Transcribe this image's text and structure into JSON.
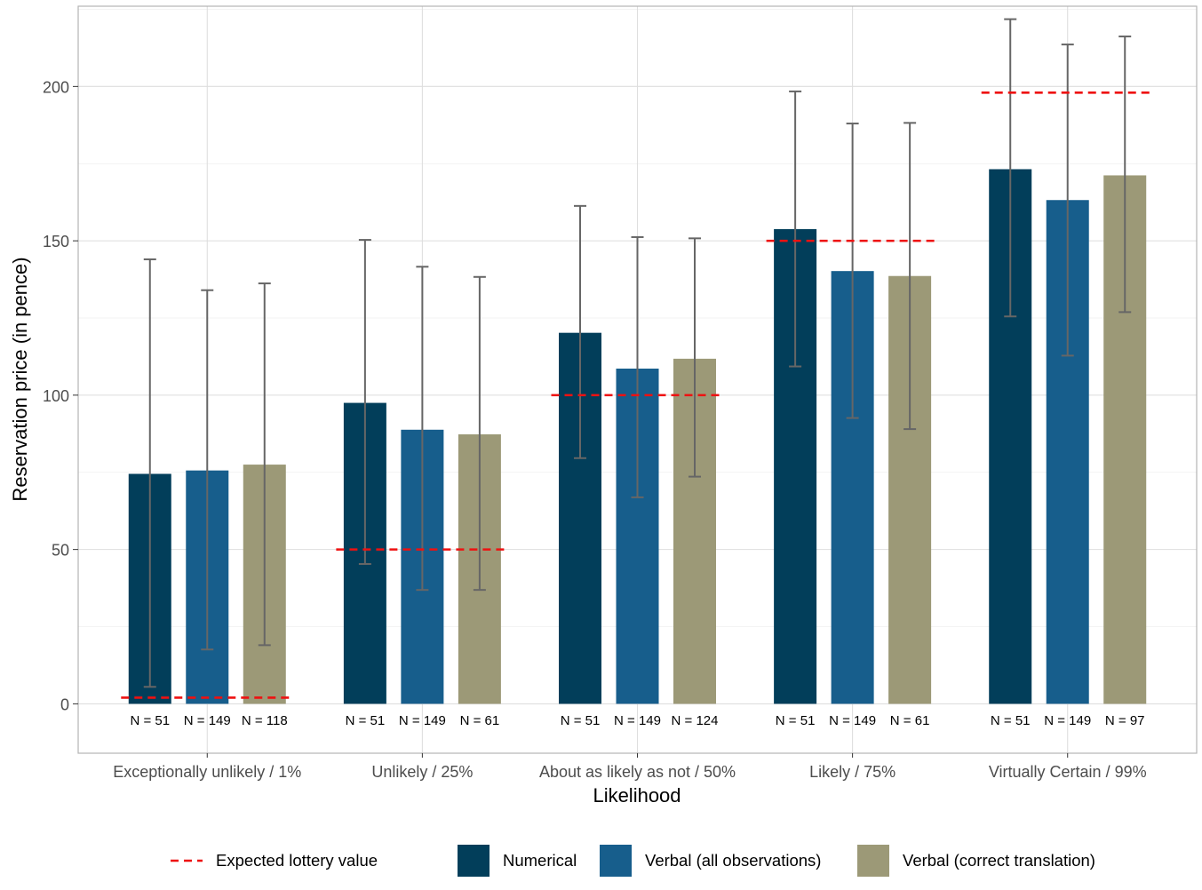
{
  "chart_data": {
    "type": "bar",
    "xlabel": "Likelihood",
    "ylabel": "Reservation price (in pence)",
    "ylim": [
      -16,
      226
    ],
    "yticks": [
      0,
      50,
      100,
      150,
      200
    ],
    "grid": true,
    "legend_position": "bottom",
    "categories": [
      "Exceptionally unlikely / 1%",
      "Unlikely / 25%",
      "About as likely as not / 50%",
      "Likely / 75%",
      "Virtually Certain / 99%"
    ],
    "series": [
      {
        "name": "Numerical",
        "color": "#023e5a",
        "values": [
          74.5,
          97.5,
          120.2,
          153.8,
          173.2
        ],
        "error_low": [
          5.5,
          45.3,
          79.6,
          109.3,
          125.5
        ],
        "error_high": [
          144.0,
          150.3,
          161.3,
          198.4,
          221.8
        ],
        "n_labels": [
          "N = 51",
          "N = 51",
          "N = 51",
          "N = 51",
          "N = 51"
        ]
      },
      {
        "name": "Verbal (all observations)",
        "color": "#175e8c",
        "values": [
          75.6,
          88.8,
          108.6,
          140.2,
          163.2
        ],
        "error_low": [
          17.6,
          36.9,
          66.9,
          92.6,
          112.8
        ],
        "error_high": [
          134.0,
          141.6,
          151.2,
          188.0,
          213.6
        ],
        "n_labels": [
          "N = 149",
          "N = 149",
          "N = 149",
          "N = 149",
          "N = 149"
        ]
      },
      {
        "name": "Verbal (correct translation)",
        "color": "#9c9977",
        "values": [
          77.5,
          87.3,
          111.8,
          138.6,
          171.2
        ],
        "error_low": [
          19.0,
          36.9,
          73.6,
          89.0,
          126.9
        ],
        "error_high": [
          136.2,
          138.3,
          150.8,
          188.2,
          216.2
        ],
        "n_labels": [
          "N = 118",
          "N = 61",
          "N = 124",
          "N = 61",
          "N = 97"
        ]
      }
    ],
    "expected_value": {
      "name": "Expected lottery value",
      "color": "#ee1111",
      "values": [
        2,
        50,
        100,
        150,
        198
      ]
    }
  }
}
